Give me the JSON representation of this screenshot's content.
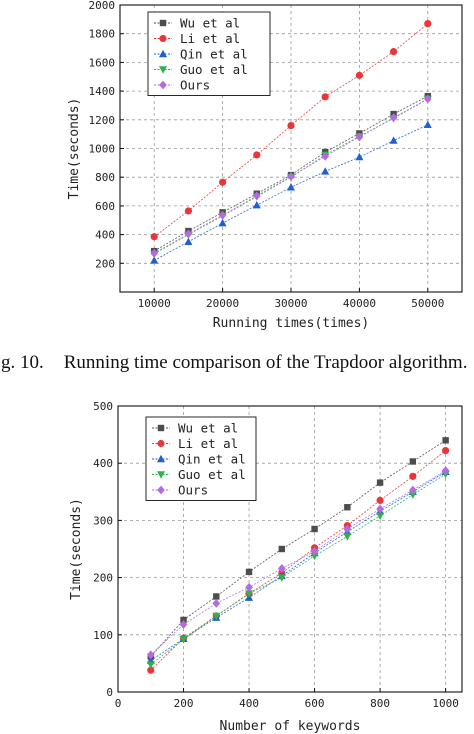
{
  "caption": {
    "prefix": "g. 10.",
    "text": "Running time comparison of the Trapdoor algorithm."
  },
  "chart_data": [
    {
      "type": "line",
      "title": "",
      "xlabel": "Running times(times)",
      "ylabel": "Time(seconds)",
      "xlim": [
        5000,
        55000
      ],
      "ylim": [
        0,
        2000
      ],
      "xticks": [
        10000,
        20000,
        30000,
        40000,
        50000
      ],
      "yticks": [
        200,
        400,
        600,
        800,
        1000,
        1200,
        1400,
        1600,
        1800,
        2000
      ],
      "grid": true,
      "legend": "top-left",
      "x": [
        10000,
        15000,
        20000,
        25000,
        30000,
        35000,
        40000,
        45000,
        50000
      ],
      "series": [
        {
          "name": "Wu et al",
          "marker": "square",
          "color": "#4d4d4d",
          "values": [
            285,
            425,
            555,
            685,
            815,
            975,
            1105,
            1240,
            1365
          ]
        },
        {
          "name": "Li et al",
          "marker": "circle",
          "color": "#e8363a",
          "values": [
            385,
            565,
            765,
            955,
            1160,
            1360,
            1510,
            1675,
            1870
          ]
        },
        {
          "name": "Qin et al",
          "marker": "triangle-up",
          "color": "#1f5fd1",
          "values": [
            220,
            350,
            480,
            605,
            730,
            840,
            940,
            1055,
            1165
          ]
        },
        {
          "name": "Guo et al",
          "marker": "triangle-down",
          "color": "#2fb24a",
          "values": [
            265,
            400,
            530,
            665,
            800,
            955,
            1085,
            1210,
            1345
          ]
        },
        {
          "name": "Ours",
          "marker": "diamond",
          "color": "#b36ae2",
          "values": [
            270,
            405,
            535,
            670,
            805,
            945,
            1080,
            1215,
            1345
          ]
        }
      ]
    },
    {
      "type": "line",
      "title": "",
      "xlabel": "Number of keywords",
      "ylabel": "Time(seconds)",
      "xlim": [
        0,
        1050
      ],
      "ylim": [
        0,
        500
      ],
      "xticks": [
        0,
        200,
        400,
        600,
        800,
        1000
      ],
      "yticks": [
        0,
        100,
        200,
        300,
        400,
        500
      ],
      "grid": true,
      "legend": "top-left",
      "x": [
        100,
        200,
        300,
        400,
        500,
        600,
        700,
        800,
        900,
        1000
      ],
      "series": [
        {
          "name": "Wu et al",
          "marker": "square",
          "color": "#4d4d4d",
          "values": [
            62,
            126,
            167,
            210,
            250,
            285,
            323,
            366,
            403,
            440
          ]
        },
        {
          "name": "Li et al",
          "marker": "circle",
          "color": "#e8363a",
          "values": [
            38,
            94,
            133,
            172,
            208,
            252,
            291,
            335,
            377,
            422
          ]
        },
        {
          "name": "Qin et al",
          "marker": "triangle-up",
          "color": "#1f5fd1",
          "values": [
            55,
            93,
            130,
            165,
            203,
            243,
            280,
            316,
            350,
            385
          ]
        },
        {
          "name": "Guo et al",
          "marker": "triangle-down",
          "color": "#2fb24a",
          "values": [
            48,
            92,
            133,
            172,
            200,
            238,
            272,
            308,
            345,
            381
          ]
        },
        {
          "name": "Ours",
          "marker": "diamond",
          "color": "#b36ae2",
          "values": [
            65,
            118,
            155,
            183,
            216,
            246,
            285,
            320,
            353,
            387
          ]
        }
      ]
    }
  ]
}
